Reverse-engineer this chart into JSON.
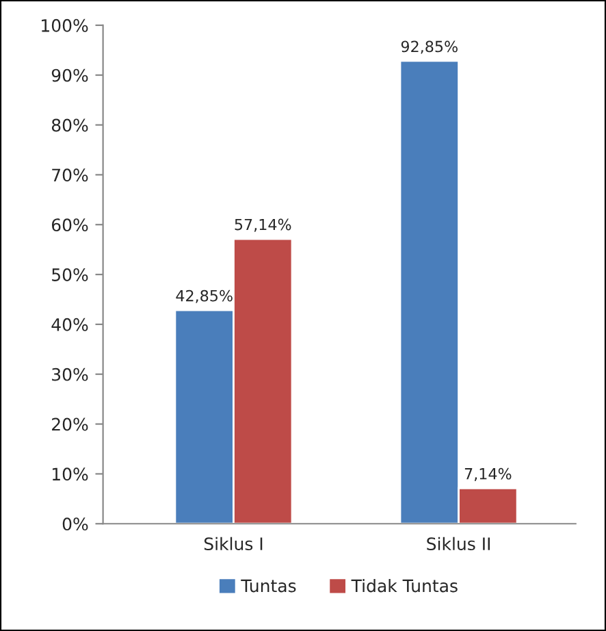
{
  "chart_data": {
    "type": "bar",
    "categories": [
      "Siklus I",
      "Siklus II"
    ],
    "series": [
      {
        "name": "Tuntas",
        "color": "#4a7ebb",
        "values": [
          42.85,
          92.85
        ],
        "value_labels": [
          "42,85%",
          "92,85%"
        ]
      },
      {
        "name": "Tidak Tuntas",
        "color": "#be4b48",
        "values": [
          57.14,
          7.14
        ],
        "value_labels": [
          "57,14%",
          "7,14%"
        ]
      }
    ],
    "ylim": [
      0,
      100
    ],
    "yticks": [
      {
        "value": 0,
        "label": "0%"
      },
      {
        "value": 10,
        "label": "10%"
      },
      {
        "value": 20,
        "label": "20%"
      },
      {
        "value": 30,
        "label": "30%"
      },
      {
        "value": 40,
        "label": "40%"
      },
      {
        "value": 50,
        "label": "50%"
      },
      {
        "value": 60,
        "label": "60%"
      },
      {
        "value": 70,
        "label": "70%"
      },
      {
        "value": 80,
        "label": "80%"
      },
      {
        "value": 90,
        "label": "90%"
      },
      {
        "value": 100,
        "label": "100%"
      }
    ],
    "grid": false,
    "legend": "bottom"
  }
}
